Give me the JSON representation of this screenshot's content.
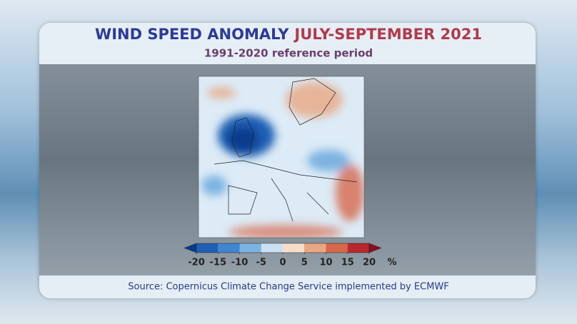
{
  "title": {
    "part1": "WIND SPEED ANOMALY",
    "part2": "JULY-SEPTEMBER 2021"
  },
  "subtitle": "1991-2020 reference period",
  "colorbar": {
    "ticks": [
      -20,
      -15,
      -10,
      -5,
      0,
      5,
      10,
      15,
      20
    ],
    "unit": "%",
    "colors": [
      "#0a3a8c",
      "#1f5fb4",
      "#3f86cf",
      "#7db3e2",
      "#c9e2f3",
      "#f6dccb",
      "#eaa783",
      "#d7684d",
      "#b9282c",
      "#8a0f22"
    ]
  },
  "source": "Source: Copernicus Climate Change Service implemented by ECMWF"
}
